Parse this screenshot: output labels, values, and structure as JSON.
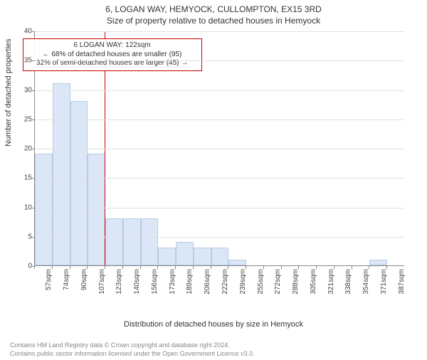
{
  "title": "6, LOGAN WAY, HEMYOCK, CULLOMPTON, EX15 3RD",
  "subtitle": "Size of property relative to detached houses in Hemyock",
  "chart": {
    "type": "histogram",
    "ylabel": "Number of detached properties",
    "xlabel": "Distribution of detached houses by size in Hemyock",
    "ylim": [
      0,
      40
    ],
    "ytick_step": 5,
    "bar_color": "#dbe7f7",
    "bar_border": "#b6cbe6",
    "grid_color": "#e0e0e0",
    "axis_color": "#888888",
    "background_color": "#ffffff",
    "refline_color": "#cc0000",
    "refline_x": 122,
    "x_start": 57,
    "x_step": 16.5,
    "n_bars": 21,
    "categories": [
      "57sqm",
      "74sqm",
      "90sqm",
      "107sqm",
      "123sqm",
      "140sqm",
      "156sqm",
      "173sqm",
      "189sqm",
      "206sqm",
      "222sqm",
      "239sqm",
      "255sqm",
      "272sqm",
      "288sqm",
      "305sqm",
      "321sqm",
      "338sqm",
      "354sqm",
      "371sqm",
      "387sqm"
    ],
    "values": [
      19,
      31,
      28,
      19,
      8,
      8,
      8,
      3,
      4,
      3,
      3,
      1,
      0,
      0,
      0,
      0,
      0,
      0,
      0,
      1,
      0
    ],
    "label_fontsize": 11,
    "tick_fontsize": 10
  },
  "annotation": {
    "line1": "6 LOGAN WAY: 122sqm",
    "line2": "← 68% of detached houses are smaller (95)",
    "line3": "32% of semi-detached houses are larger (45) →",
    "border_color": "#cc0000"
  },
  "footer": {
    "line1": "Contains HM Land Registry data © Crown copyright and database right 2024.",
    "line2": "Contains public sector information licensed under the Open Government Licence v3.0."
  }
}
